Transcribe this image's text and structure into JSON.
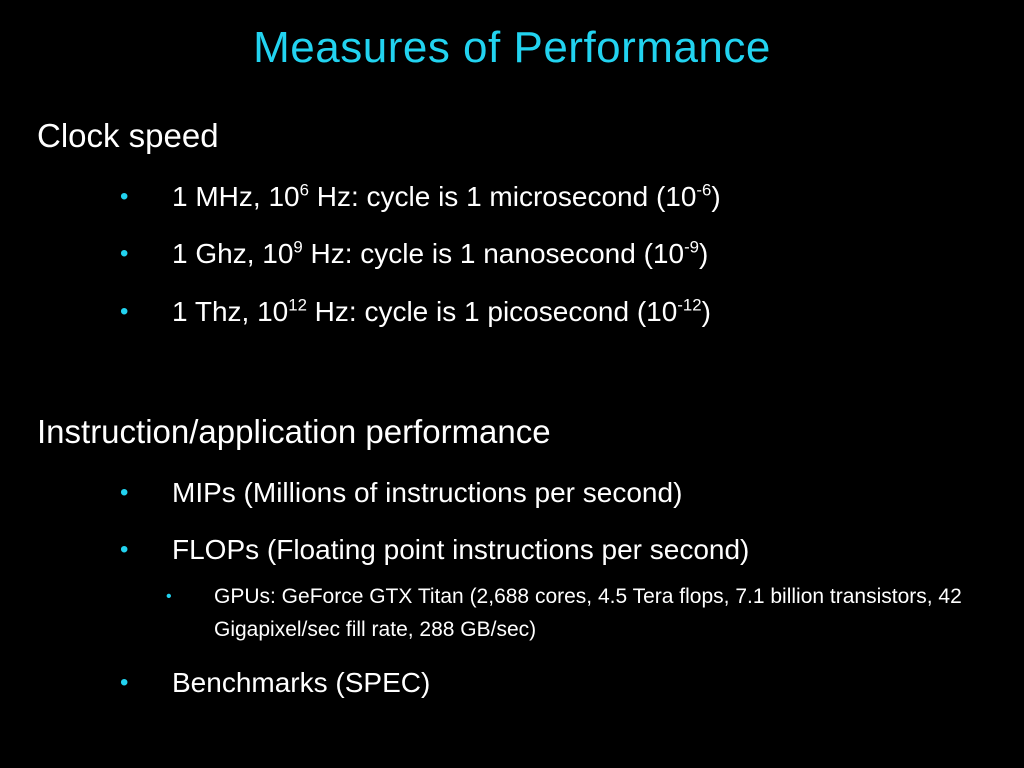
{
  "title": "Measures of Performance",
  "accent_color": "#22d3f0",
  "background_color": "#000000",
  "sections": [
    {
      "heading": "Clock speed",
      "bullets": [
        {
          "a": "1 MHz, 10",
          "sup1": "6",
          "b": " Hz: cycle is 1 microsecond (10",
          "sup2": "-6",
          "c": ")"
        },
        {
          "a": "1 Ghz,  10",
          "sup1": "9",
          "b": "  Hz: cycle is 1 nanosecond (10",
          "sup2": "-9",
          "c": ")"
        },
        {
          "a": "1 Thz,  10",
          "sup1": "12",
          "b": " Hz: cycle is 1 picosecond (10",
          "sup2": "-12",
          "c": ")"
        }
      ]
    },
    {
      "heading": "Instruction/application performance",
      "bullets": [
        {
          "text": "MIPs (Millions of instructions per second)"
        },
        {
          "text": "FLOPs (Floating point instructions per second)"
        },
        {
          "text": "Benchmarks (SPEC)"
        }
      ],
      "sub_bullet": "GPUs: GeForce GTX Titan (2,688 cores, 4.5 Tera flops, 7.1 billion transistors, 42 Gigapixel/sec fill rate, 288 GB/sec)"
    }
  ],
  "bullet_symbol": "•"
}
